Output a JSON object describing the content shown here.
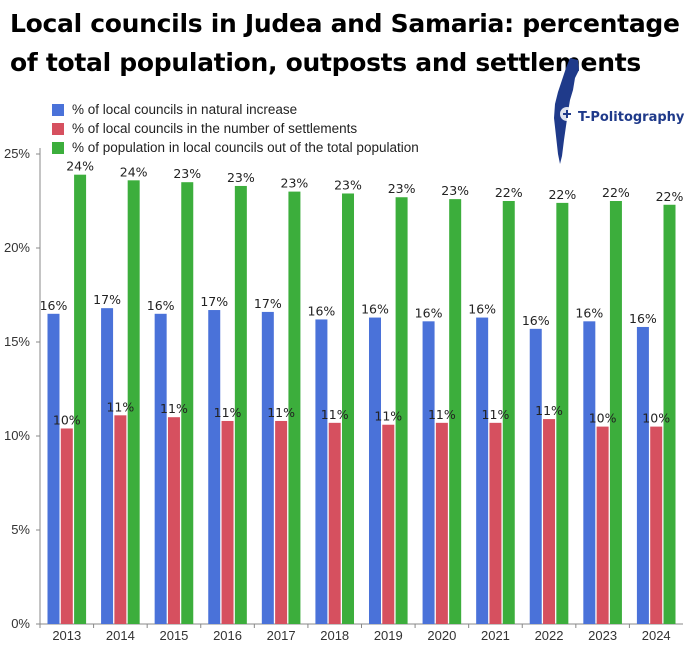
{
  "title": "Local councils in Judea and Samaria: percentage of total population, outposts and settlements",
  "logo": {
    "text": "T-Politography",
    "icon": "israel-map-logo-icon"
  },
  "colors": {
    "blue": "#4a72d9",
    "red": "#d6505f",
    "green": "#3cae3c",
    "axis": "#888888"
  },
  "chart_data": {
    "type": "bar",
    "categories": [
      "2013",
      "2014",
      "2015",
      "2016",
      "2017",
      "2018",
      "2019",
      "2020",
      "2021",
      "2022",
      "2023",
      "2024"
    ],
    "series": [
      {
        "name": "% of local councils in natural increase",
        "values": [
          16.5,
          16.8,
          16.5,
          16.7,
          16.6,
          16.2,
          16.3,
          16.1,
          16.3,
          15.7,
          16.1,
          15.8
        ],
        "labels": [
          "16%",
          "17%",
          "16%",
          "17%",
          "17%",
          "16%",
          "16%",
          "16%",
          "16%",
          "16%",
          "16%",
          "16%"
        ]
      },
      {
        "name": "% of local councils in the number of settlements",
        "values": [
          10.4,
          11.1,
          11.0,
          10.8,
          10.8,
          10.7,
          10.6,
          10.7,
          10.7,
          10.9,
          10.5,
          10.5
        ],
        "labels": [
          "10%",
          "11%",
          "11%",
          "11%",
          "11%",
          "11%",
          "11%",
          "11%",
          "11%",
          "11%",
          "10%",
          "10%"
        ]
      },
      {
        "name": "% of population in local councils out of the total population",
        "values": [
          23.9,
          23.6,
          23.5,
          23.3,
          23.0,
          22.9,
          22.7,
          22.6,
          22.5,
          22.4,
          22.5,
          22.3
        ],
        "labels": [
          "24%",
          "24%",
          "23%",
          "23%",
          "23%",
          "23%",
          "23%",
          "23%",
          "22%",
          "22%",
          "22%",
          "22%"
        ]
      }
    ],
    "y_ticks": [
      "0%",
      "5%",
      "10%",
      "15%",
      "20%",
      "25%"
    ],
    "ylim": [
      0,
      25
    ],
    "grid": false,
    "legend_position": "top-left"
  }
}
